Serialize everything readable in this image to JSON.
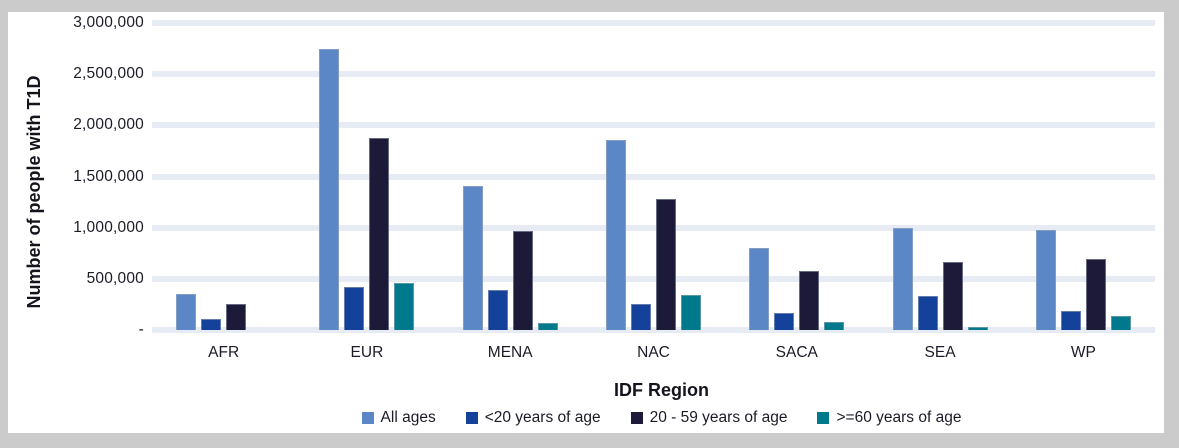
{
  "frame": {
    "background_color": "#cbcbcb",
    "panel_background_color": "#ffffff"
  },
  "chart_data": {
    "type": "bar",
    "title": "",
    "xlabel": "IDF Region",
    "ylabel": "Number of people with T1D",
    "categories": [
      "AFR",
      "EUR",
      "MENA",
      "NAC",
      "SACA",
      "SEA",
      "WP"
    ],
    "series": [
      {
        "name": "All ages",
        "color": "#5b87c6",
        "values": [
          350000,
          2750000,
          1410000,
          1860000,
          800000,
          1000000,
          980000
        ]
      },
      {
        "name": "<20 years of age",
        "color": "#14429b",
        "values": [
          110000,
          420000,
          395000,
          250000,
          170000,
          330000,
          190000
        ]
      },
      {
        "name": "20 - 59 years of age",
        "color": "#1c1a38",
        "values": [
          250000,
          1880000,
          970000,
          1285000,
          575000,
          665000,
          690000
        ]
      },
      {
        "name": ">=60 years of age",
        "color": "#00798c",
        "values": [
          0,
          460000,
          65000,
          345000,
          75000,
          25000,
          135000
        ]
      }
    ],
    "ylim": [
      0,
      3000000
    ],
    "ytick_interval": 500000,
    "ytick_labels_bottom_up": [
      "-",
      "500,000",
      "1,000,000",
      "1,500,000",
      "2,000,000",
      "2,500,000",
      "3,000,000"
    ],
    "grid": true,
    "gridline_color": "#e7ebf3",
    "legend_position": "bottom",
    "text_color": "#1b1b27"
  }
}
